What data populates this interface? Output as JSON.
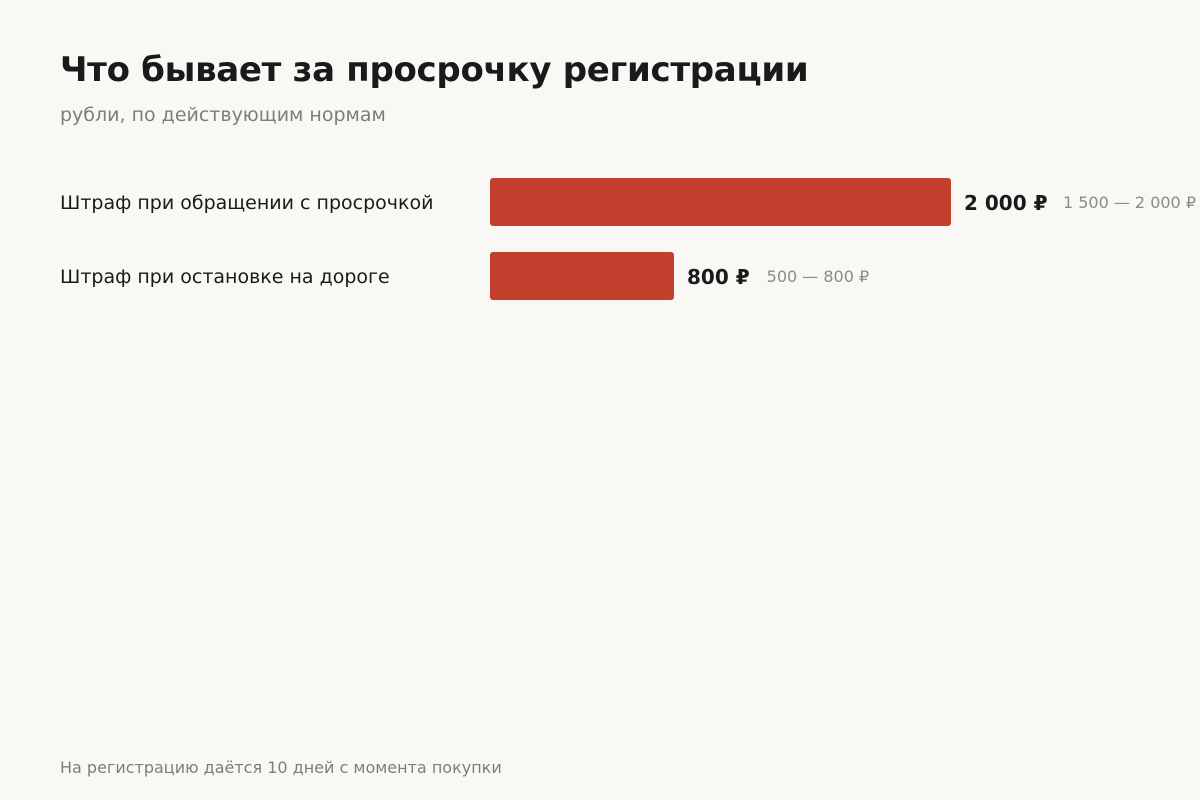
{
  "chart_data": {
    "type": "bar",
    "orientation": "horizontal",
    "title": "Что бывает за просрочку регистрации",
    "subtitle": "рубли, по действующим нормам",
    "categories": [
      "Штраф при обращении с просрочкой",
      "Штраф при остановке на дороге"
    ],
    "values": [
      2000,
      800
    ],
    "value_labels": [
      "2 000 ₽",
      "800 ₽"
    ],
    "range_labels": [
      "1 500 — 2 000 ₽",
      "500 — 800 ₽"
    ],
    "xlim": [
      0,
      2000
    ],
    "grid": false,
    "bar_color": "#c33f2d"
  },
  "footnote": "На регистрацию даётся 10 дней с момента покупки"
}
